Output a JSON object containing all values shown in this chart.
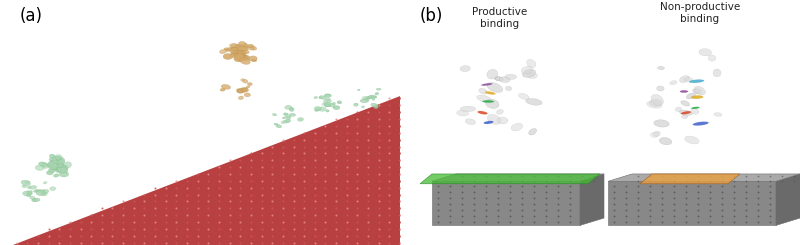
{
  "fig_width": 8.0,
  "fig_height": 2.45,
  "dpi": 100,
  "bg_color": "#ffffff",
  "label_a": "(a)",
  "label_b": "(b)",
  "label_fontsize": 12,
  "text_productive": "Productive\nbinding",
  "text_nonproductive": "Non-productive\nbinding",
  "text_color": "#222222",
  "cellulose_red": "#b84040",
  "cellulose_dot": "#cc5555",
  "cellulose_dot_light": "#e88888",
  "enzyme_green": "#a8d5b0",
  "enzyme_green_edge": "#78b888",
  "enzyme_orange": "#d4aa6a",
  "enzyme_orange_edge": "#b88840",
  "green_highlight": "#44bb33",
  "orange_highlight": "#e8a040",
  "gray_dark": "#6a6a6a",
  "gray_mid": "#888888",
  "gray_light": "#aaaaaa",
  "gray_dot": "#555555"
}
